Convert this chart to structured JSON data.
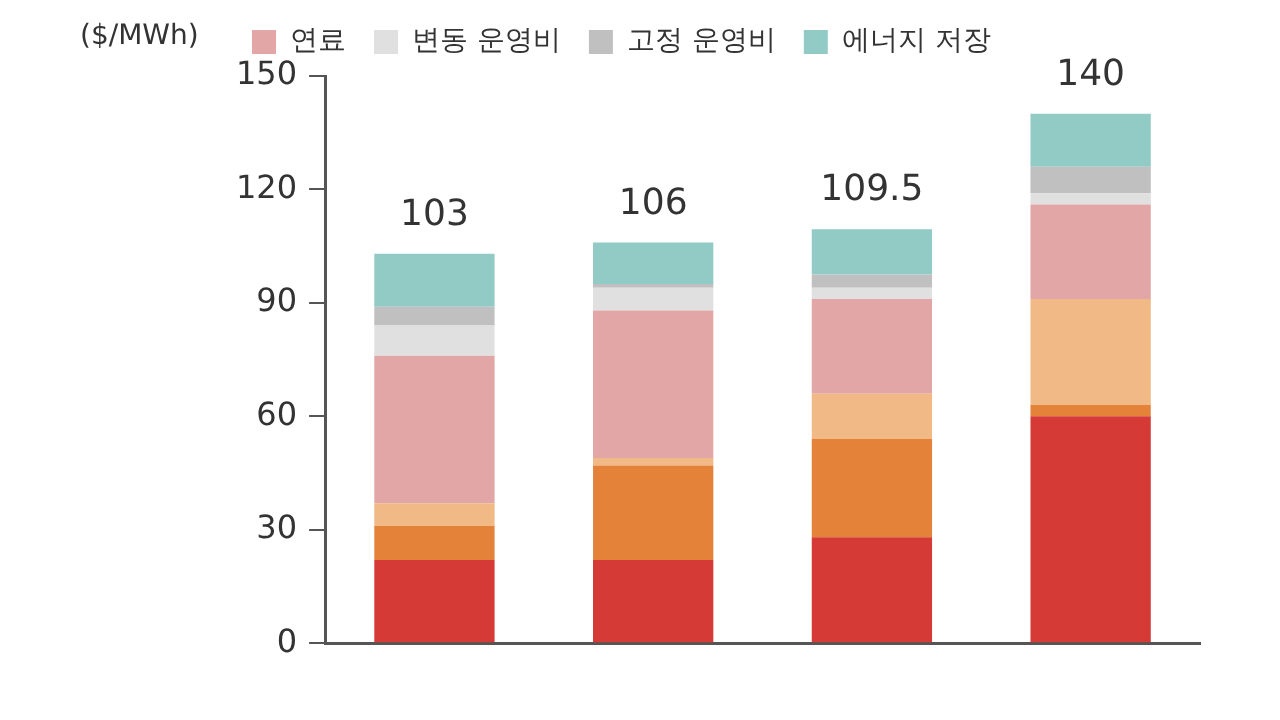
{
  "chart_data": {
    "type": "bar",
    "stacked": true,
    "ylabel": "($/MWh)",
    "categories": [
      null,
      null,
      null,
      null
    ],
    "series": [
      {
        "color": "#d63a36",
        "values": [
          22,
          22,
          28,
          60
        ]
      },
      {
        "color": "#e5823a",
        "values": [
          9,
          25,
          26,
          3
        ]
      },
      {
        "color": "#f0b985",
        "values": [
          6,
          2,
          12,
          28
        ]
      },
      {
        "name": "연료",
        "color": "#e3a6a6",
        "values": [
          39,
          39,
          25,
          25
        ]
      },
      {
        "name": "변동 운영비",
        "color": "#e0e0e0",
        "values": [
          8,
          6,
          3,
          3
        ]
      },
      {
        "name": "고정 운영비",
        "color": "#c0c0c0",
        "values": [
          5,
          1,
          3.5,
          7
        ]
      },
      {
        "name": "에너지 저장",
        "color": "#92cac6",
        "values": [
          14,
          11,
          12,
          14
        ]
      }
    ],
    "totals": [
      "103",
      "106",
      "109.5",
      "140"
    ],
    "ylim": [
      0,
      150
    ],
    "yticks": [
      0,
      30,
      60,
      90,
      120,
      150
    ],
    "grid": false,
    "legend": "top"
  }
}
